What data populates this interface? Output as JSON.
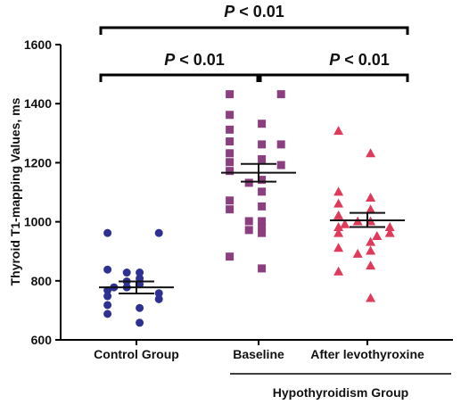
{
  "chart_data": {
    "type": "scatter",
    "ylabel": "Thyroid T1-mapping Values, ms",
    "xlabel": "",
    "ylim": [
      600,
      1600
    ],
    "yticks": [
      600,
      800,
      1000,
      1200,
      1400,
      1600
    ],
    "categories": [
      "Control Group",
      "Baseline",
      "After levothyroxine"
    ],
    "group_label": "Hypothyroidism Group",
    "series": [
      {
        "category": "Control Group",
        "marker": "circle",
        "color": "#2e3192",
        "mean": 778,
        "sem_low": 757,
        "sem_high": 798,
        "points": [
          962,
          962,
          838,
          828,
          828,
          808,
          798,
          788,
          778,
          778,
          768,
          758,
          748,
          738,
          718,
          708,
          688,
          658
        ]
      },
      {
        "category": "Baseline",
        "marker": "square",
        "color": "#8b3f7f",
        "mean": 1166,
        "sem_low": 1136,
        "sem_high": 1196,
        "points": [
          1432,
          1432,
          1362,
          1332,
          1312,
          1262,
          1272,
          1262,
          1232,
          1212,
          1202,
          1192,
          1172,
          1142,
          1132,
          1102,
          1072,
          1052,
          1042,
          1002,
          1002,
          982,
          972,
          962,
          882,
          842
        ]
      },
      {
        "category": "After levothyroxine",
        "marker": "triangle",
        "color": "#e03a5a",
        "mean": 1005,
        "sem_low": 982,
        "sem_high": 1030,
        "points": [
          1308,
          1232,
          1102,
          1082,
          1062,
          1042,
          1022,
          1002,
          1002,
          992,
          982,
          982,
          962,
          962,
          952,
          932,
          912,
          902,
          892,
          852,
          832,
          742
        ]
      }
    ],
    "annotations": [
      {
        "text": "P < 0.01",
        "from": 0,
        "to": 2
      },
      {
        "text": "P < 0.01",
        "from": 0,
        "to": 1
      },
      {
        "text": "P < 0.01",
        "from": 1,
        "to": 2
      }
    ]
  }
}
